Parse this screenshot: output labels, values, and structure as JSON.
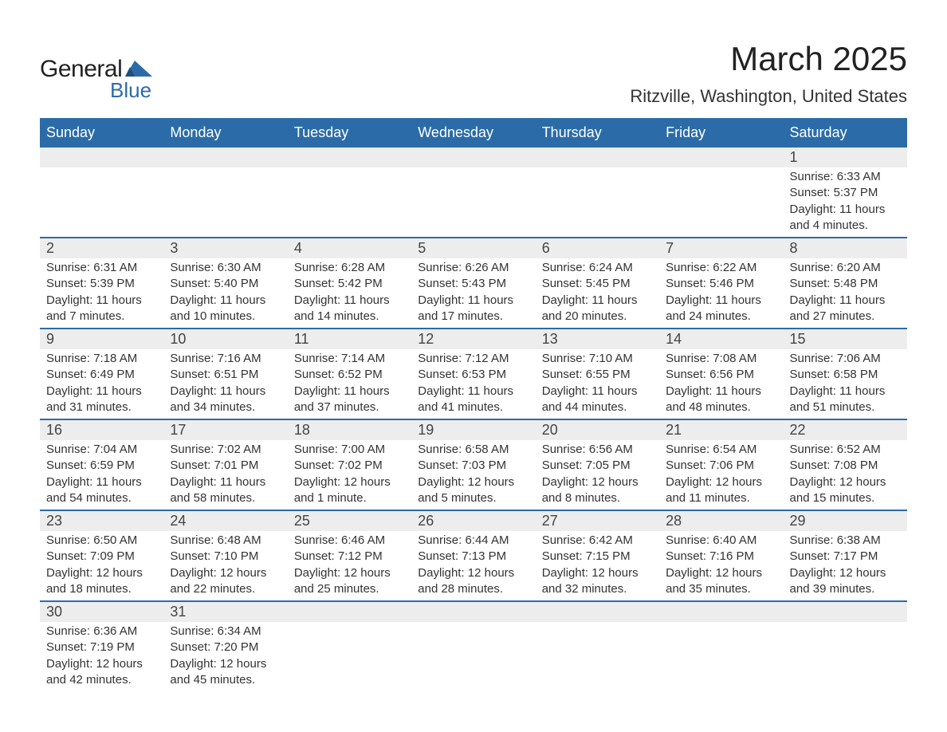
{
  "logo": {
    "text_top": "General",
    "text_bottom": "Blue",
    "shape_color": "#2b6ca8"
  },
  "header": {
    "title": "March 2025",
    "location": "Ritzville, Washington, United States"
  },
  "colors": {
    "header_bg": "#2b6ca8",
    "header_fg": "#ffffff",
    "daynum_bg": "#ededed",
    "row_border": "#2b6ca8",
    "body_text": "#333333",
    "page_bg": "#ffffff"
  },
  "typography": {
    "title_fontsize": 42,
    "location_fontsize": 22,
    "weekday_fontsize": 18,
    "daynum_fontsize": 18,
    "detail_fontsize": 15,
    "font_family": "Arial"
  },
  "weekdays": [
    "Sunday",
    "Monday",
    "Tuesday",
    "Wednesday",
    "Thursday",
    "Friday",
    "Saturday"
  ],
  "labels": {
    "sunrise": "Sunrise",
    "sunset": "Sunset",
    "daylight": "Daylight"
  },
  "calendar": {
    "type": "table",
    "columns": 7,
    "weeks": [
      [
        null,
        null,
        null,
        null,
        null,
        null,
        {
          "day": "1",
          "sunrise": "Sunrise: 6:33 AM",
          "sunset": "Sunset: 5:37 PM",
          "daylight": "Daylight: 11 hours and 4 minutes."
        }
      ],
      [
        {
          "day": "2",
          "sunrise": "Sunrise: 6:31 AM",
          "sunset": "Sunset: 5:39 PM",
          "daylight": "Daylight: 11 hours and 7 minutes."
        },
        {
          "day": "3",
          "sunrise": "Sunrise: 6:30 AM",
          "sunset": "Sunset: 5:40 PM",
          "daylight": "Daylight: 11 hours and 10 minutes."
        },
        {
          "day": "4",
          "sunrise": "Sunrise: 6:28 AM",
          "sunset": "Sunset: 5:42 PM",
          "daylight": "Daylight: 11 hours and 14 minutes."
        },
        {
          "day": "5",
          "sunrise": "Sunrise: 6:26 AM",
          "sunset": "Sunset: 5:43 PM",
          "daylight": "Daylight: 11 hours and 17 minutes."
        },
        {
          "day": "6",
          "sunrise": "Sunrise: 6:24 AM",
          "sunset": "Sunset: 5:45 PM",
          "daylight": "Daylight: 11 hours and 20 minutes."
        },
        {
          "day": "7",
          "sunrise": "Sunrise: 6:22 AM",
          "sunset": "Sunset: 5:46 PM",
          "daylight": "Daylight: 11 hours and 24 minutes."
        },
        {
          "day": "8",
          "sunrise": "Sunrise: 6:20 AM",
          "sunset": "Sunset: 5:48 PM",
          "daylight": "Daylight: 11 hours and 27 minutes."
        }
      ],
      [
        {
          "day": "9",
          "sunrise": "Sunrise: 7:18 AM",
          "sunset": "Sunset: 6:49 PM",
          "daylight": "Daylight: 11 hours and 31 minutes."
        },
        {
          "day": "10",
          "sunrise": "Sunrise: 7:16 AM",
          "sunset": "Sunset: 6:51 PM",
          "daylight": "Daylight: 11 hours and 34 minutes."
        },
        {
          "day": "11",
          "sunrise": "Sunrise: 7:14 AM",
          "sunset": "Sunset: 6:52 PM",
          "daylight": "Daylight: 11 hours and 37 minutes."
        },
        {
          "day": "12",
          "sunrise": "Sunrise: 7:12 AM",
          "sunset": "Sunset: 6:53 PM",
          "daylight": "Daylight: 11 hours and 41 minutes."
        },
        {
          "day": "13",
          "sunrise": "Sunrise: 7:10 AM",
          "sunset": "Sunset: 6:55 PM",
          "daylight": "Daylight: 11 hours and 44 minutes."
        },
        {
          "day": "14",
          "sunrise": "Sunrise: 7:08 AM",
          "sunset": "Sunset: 6:56 PM",
          "daylight": "Daylight: 11 hours and 48 minutes."
        },
        {
          "day": "15",
          "sunrise": "Sunrise: 7:06 AM",
          "sunset": "Sunset: 6:58 PM",
          "daylight": "Daylight: 11 hours and 51 minutes."
        }
      ],
      [
        {
          "day": "16",
          "sunrise": "Sunrise: 7:04 AM",
          "sunset": "Sunset: 6:59 PM",
          "daylight": "Daylight: 11 hours and 54 minutes."
        },
        {
          "day": "17",
          "sunrise": "Sunrise: 7:02 AM",
          "sunset": "Sunset: 7:01 PM",
          "daylight": "Daylight: 11 hours and 58 minutes."
        },
        {
          "day": "18",
          "sunrise": "Sunrise: 7:00 AM",
          "sunset": "Sunset: 7:02 PM",
          "daylight": "Daylight: 12 hours and 1 minute."
        },
        {
          "day": "19",
          "sunrise": "Sunrise: 6:58 AM",
          "sunset": "Sunset: 7:03 PM",
          "daylight": "Daylight: 12 hours and 5 minutes."
        },
        {
          "day": "20",
          "sunrise": "Sunrise: 6:56 AM",
          "sunset": "Sunset: 7:05 PM",
          "daylight": "Daylight: 12 hours and 8 minutes."
        },
        {
          "day": "21",
          "sunrise": "Sunrise: 6:54 AM",
          "sunset": "Sunset: 7:06 PM",
          "daylight": "Daylight: 12 hours and 11 minutes."
        },
        {
          "day": "22",
          "sunrise": "Sunrise: 6:52 AM",
          "sunset": "Sunset: 7:08 PM",
          "daylight": "Daylight: 12 hours and 15 minutes."
        }
      ],
      [
        {
          "day": "23",
          "sunrise": "Sunrise: 6:50 AM",
          "sunset": "Sunset: 7:09 PM",
          "daylight": "Daylight: 12 hours and 18 minutes."
        },
        {
          "day": "24",
          "sunrise": "Sunrise: 6:48 AM",
          "sunset": "Sunset: 7:10 PM",
          "daylight": "Daylight: 12 hours and 22 minutes."
        },
        {
          "day": "25",
          "sunrise": "Sunrise: 6:46 AM",
          "sunset": "Sunset: 7:12 PM",
          "daylight": "Daylight: 12 hours and 25 minutes."
        },
        {
          "day": "26",
          "sunrise": "Sunrise: 6:44 AM",
          "sunset": "Sunset: 7:13 PM",
          "daylight": "Daylight: 12 hours and 28 minutes."
        },
        {
          "day": "27",
          "sunrise": "Sunrise: 6:42 AM",
          "sunset": "Sunset: 7:15 PM",
          "daylight": "Daylight: 12 hours and 32 minutes."
        },
        {
          "day": "28",
          "sunrise": "Sunrise: 6:40 AM",
          "sunset": "Sunset: 7:16 PM",
          "daylight": "Daylight: 12 hours and 35 minutes."
        },
        {
          "day": "29",
          "sunrise": "Sunrise: 6:38 AM",
          "sunset": "Sunset: 7:17 PM",
          "daylight": "Daylight: 12 hours and 39 minutes."
        }
      ],
      [
        {
          "day": "30",
          "sunrise": "Sunrise: 6:36 AM",
          "sunset": "Sunset: 7:19 PM",
          "daylight": "Daylight: 12 hours and 42 minutes."
        },
        {
          "day": "31",
          "sunrise": "Sunrise: 6:34 AM",
          "sunset": "Sunset: 7:20 PM",
          "daylight": "Daylight: 12 hours and 45 minutes."
        },
        null,
        null,
        null,
        null,
        null
      ]
    ]
  }
}
